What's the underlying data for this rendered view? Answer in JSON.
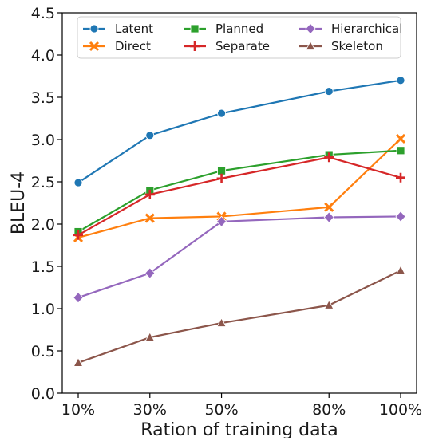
{
  "chart_data": {
    "type": "line",
    "title": "",
    "xlabel": "Ration of training data",
    "ylabel": "BLEU-4",
    "categories": [
      "10%",
      "30%",
      "50%",
      "80%",
      "100%"
    ],
    "x": [
      10,
      30,
      50,
      80,
      100
    ],
    "ylim": [
      0.0,
      4.5
    ],
    "yticks": [
      "0.0",
      "0.5",
      "1.0",
      "1.5",
      "2.0",
      "2.5",
      "3.0",
      "3.5",
      "4.0",
      "4.5"
    ],
    "grid": false,
    "legend_position": "top",
    "series": [
      {
        "name": "Latent",
        "color": "#1f77b4",
        "marker": "circle",
        "values": [
          2.49,
          3.05,
          3.31,
          3.57,
          3.7
        ]
      },
      {
        "name": "Direct",
        "color": "#ff7f0e",
        "marker": "x",
        "values": [
          1.84,
          2.07,
          2.09,
          2.2,
          3.01
        ]
      },
      {
        "name": "Planned",
        "color": "#2ca02c",
        "marker": "square",
        "values": [
          1.91,
          2.4,
          2.63,
          2.82,
          2.87
        ]
      },
      {
        "name": "Separate",
        "color": "#d62728",
        "marker": "plus",
        "values": [
          1.87,
          2.35,
          2.54,
          2.79,
          2.55
        ]
      },
      {
        "name": "Hierarchical",
        "color": "#9467bd",
        "marker": "diamond",
        "values": [
          1.13,
          1.42,
          2.03,
          2.08,
          2.09
        ]
      },
      {
        "name": "Skeleton",
        "color": "#8c564b",
        "marker": "triangle",
        "values": [
          0.36,
          0.66,
          0.83,
          1.04,
          1.45
        ]
      }
    ]
  }
}
